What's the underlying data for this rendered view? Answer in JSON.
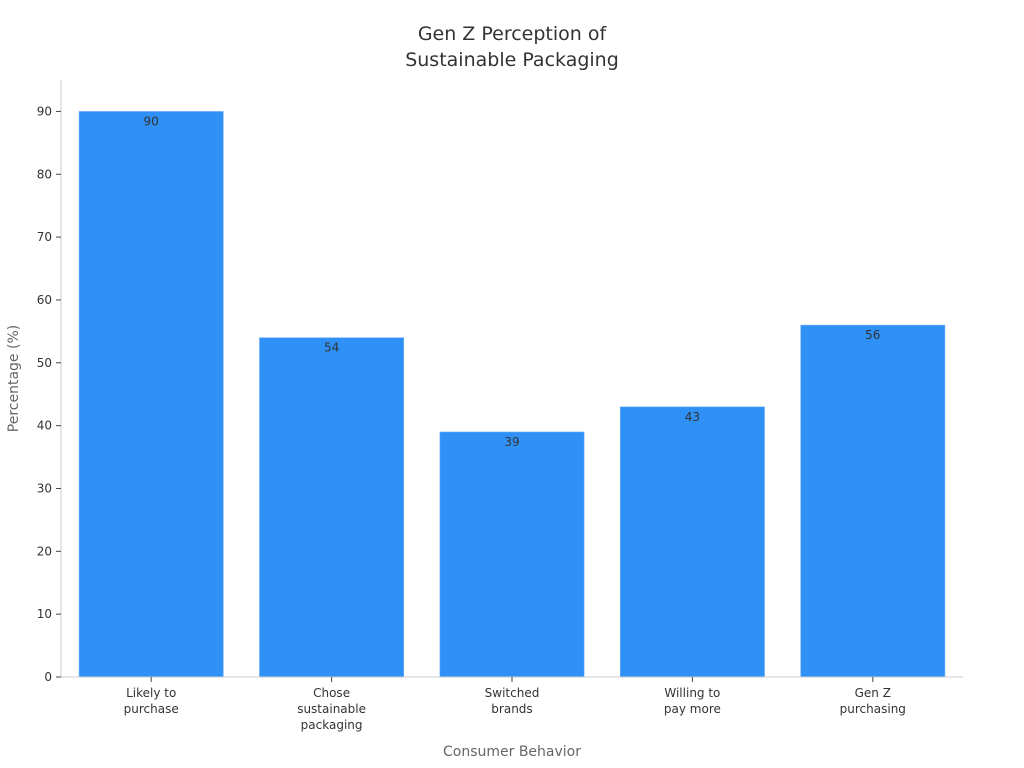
{
  "chart_data": {
    "type": "bar",
    "title_lines": [
      "Gen Z Perception of",
      "Sustainable Packaging"
    ],
    "xlabel": "Consumer Behavior",
    "ylabel": "Percentage (%)",
    "categories": [
      [
        "Likely to",
        "purchase"
      ],
      [
        "Chose",
        "sustainable",
        "packaging"
      ],
      [
        "Switched",
        "brands"
      ],
      [
        "Willing to",
        "pay more"
      ],
      [
        "Gen Z",
        "purchasing"
      ]
    ],
    "values": [
      90,
      54,
      39,
      43,
      56
    ],
    "ylim": [
      0,
      95
    ],
    "yticks": [
      0,
      10,
      20,
      30,
      40,
      50,
      60,
      70,
      80,
      90
    ],
    "bar_color": "#2f91f6",
    "grid": false,
    "legend": "none"
  }
}
